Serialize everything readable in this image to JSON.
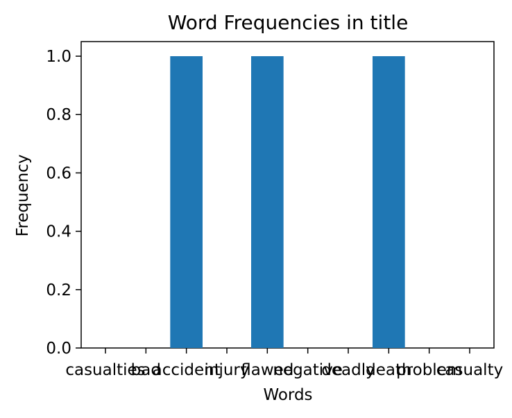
{
  "chart_data": {
    "type": "bar",
    "title": "Word Frequencies in title",
    "xlabel": "Words",
    "ylabel": "Frequency",
    "categories": [
      "casualties",
      "bad",
      "accident",
      "injury",
      "flawed",
      "negative",
      "deadly",
      "death",
      "problem",
      "casualty"
    ],
    "values": [
      0,
      0,
      1,
      0,
      1,
      0,
      0,
      1,
      0,
      0
    ],
    "ylim": [
      0,
      1.05
    ],
    "yticks": [
      "0.0",
      "0.2",
      "0.4",
      "0.6",
      "0.8",
      "1.0"
    ],
    "grid": false,
    "legend": "none",
    "colors": {
      "bar": "#1f77b4",
      "axis": "#000000",
      "background": "#ffffff"
    }
  }
}
